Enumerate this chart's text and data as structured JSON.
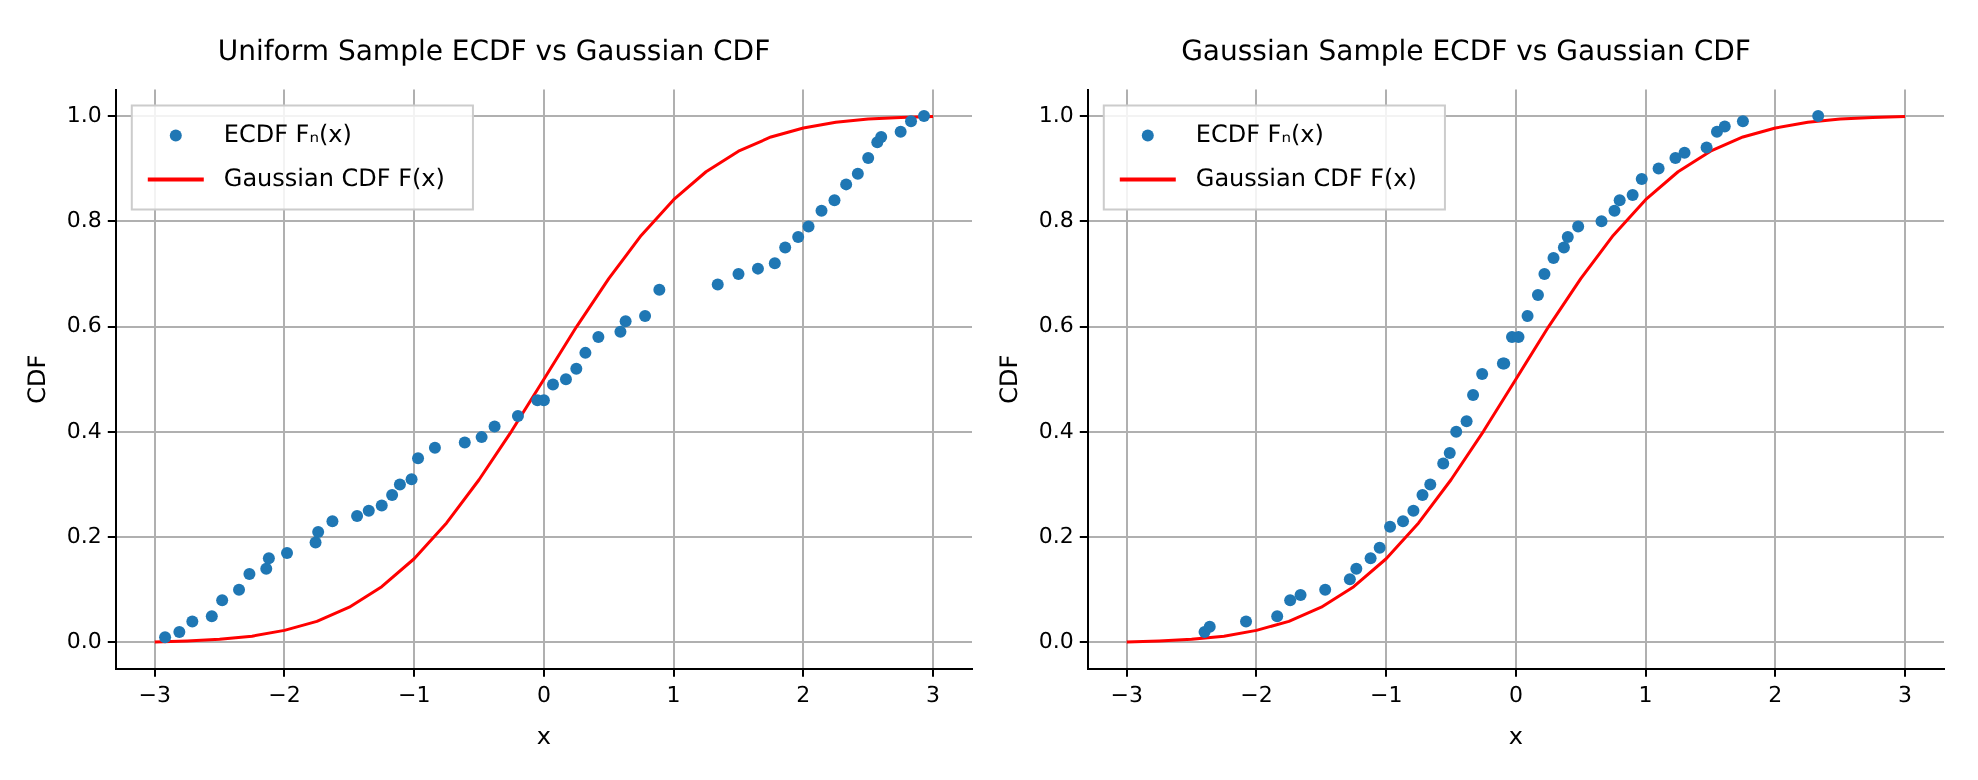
{
  "chart_data": [
    {
      "type": "scatter",
      "title": "Uniform Sample ECDF vs Gaussian CDF",
      "xlabel": "x",
      "ylabel": "CDF",
      "xlim": [
        -3.3,
        3.3
      ],
      "xticks": [
        -3,
        -2,
        -1,
        0,
        1,
        2,
        3
      ],
      "ylim": [
        -0.05,
        1.05
      ],
      "yticks": [
        {
          "value": 0,
          "label": "0.0"
        },
        {
          "value": 0.2,
          "label": "0.2"
        },
        {
          "value": 0.4,
          "label": "0.4"
        },
        {
          "value": 0.6,
          "label": "0.6"
        },
        {
          "value": 0.8,
          "label": "0.8"
        },
        {
          "value": 1,
          "label": "1.0"
        }
      ],
      "grid": true,
      "legend": "top left",
      "series": [
        {
          "name": "ECDF Fₙ(x)",
          "type": "scatter",
          "marker": "circle",
          "color": "#1f77b4",
          "x": [
            -2.92,
            -2.81,
            -2.71,
            -2.56,
            -2.48,
            -2.35,
            -2.27,
            -2.14,
            -2.12,
            -1.98,
            -1.76,
            -1.74,
            -1.63,
            -1.44,
            -1.35,
            -1.25,
            -1.17,
            -1.11,
            -1.02,
            -0.97,
            -0.84,
            -0.61,
            -0.48,
            -0.38,
            -0.2,
            -0.05,
            0,
            0.07,
            0.17,
            0.25,
            0.32,
            0.42,
            0.59,
            0.63,
            0.78,
            0.89,
            1.34,
            1.5,
            1.65,
            1.78,
            1.86,
            1.96,
            2.04,
            2.14,
            2.24,
            2.33,
            2.42,
            2.5,
            2.57,
            2.6,
            2.75,
            2.83,
            2.93
          ],
          "values": [
            0.01,
            0.02,
            0.04,
            0.05,
            0.08,
            0.1,
            0.13,
            0.14,
            0.16,
            0.17,
            0.19,
            0.21,
            0.23,
            0.24,
            0.25,
            0.26,
            0.28,
            0.3,
            0.31,
            0.35,
            0.37,
            0.38,
            0.39,
            0.41,
            0.43,
            0.46,
            0.46,
            0.49,
            0.5,
            0.52,
            0.55,
            0.58,
            0.59,
            0.61,
            0.62,
            0.67,
            0.68,
            0.7,
            0.71,
            0.72,
            0.75,
            0.77,
            0.79,
            0.82,
            0.84,
            0.87,
            0.89,
            0.92,
            0.95,
            0.96,
            0.97,
            0.99,
            1.0
          ]
        },
        {
          "name": "Gaussian CDF F(x)",
          "type": "line",
          "marker": "none",
          "line_style": "solid",
          "color": "#ff0000",
          "x": [
            -3,
            -2.75,
            -2.5,
            -2.25,
            -2,
            -1.75,
            -1.5,
            -1.25,
            -1,
            -0.75,
            -0.5,
            -0.25,
            0,
            0.25,
            0.5,
            0.75,
            1,
            1.25,
            1.5,
            1.75,
            2,
            2.25,
            2.5,
            2.75,
            3
          ],
          "values": [
            0.001,
            0.003,
            0.006,
            0.012,
            0.023,
            0.04,
            0.067,
            0.106,
            0.159,
            0.227,
            0.309,
            0.401,
            0.5,
            0.599,
            0.691,
            0.773,
            0.841,
            0.894,
            0.933,
            0.96,
            0.977,
            0.988,
            0.994,
            0.997,
            0.999
          ]
        }
      ]
    },
    {
      "type": "scatter",
      "title": "Gaussian Sample ECDF vs Gaussian CDF",
      "xlabel": "x",
      "ylabel": "CDF",
      "xlim": [
        -3.3,
        3.3
      ],
      "xticks": [
        -3,
        -2,
        -1,
        0,
        1,
        2,
        3
      ],
      "ylim": [
        -0.05,
        1.05
      ],
      "yticks": [
        {
          "value": 0,
          "label": "0.0"
        },
        {
          "value": 0.2,
          "label": "0.2"
        },
        {
          "value": 0.4,
          "label": "0.4"
        },
        {
          "value": 0.6,
          "label": "0.6"
        },
        {
          "value": 0.8,
          "label": "0.8"
        },
        {
          "value": 1,
          "label": "1.0"
        }
      ],
      "grid": true,
      "legend": "top left",
      "series": [
        {
          "name": "ECDF Fₙ(x)",
          "type": "scatter",
          "marker": "circle",
          "color": "#1f77b4",
          "x": [
            -2.4,
            -2.36,
            -2.08,
            -1.84,
            -1.74,
            -1.66,
            -1.47,
            -1.28,
            -1.23,
            -1.12,
            -1.05,
            -0.97,
            -0.87,
            -0.79,
            -0.72,
            -0.66,
            -0.56,
            -0.51,
            -0.46,
            -0.38,
            -0.33,
            -0.26,
            -0.1,
            -0.09,
            -0.03,
            0.02,
            0.09,
            0.17,
            0.22,
            0.29,
            0.37,
            0.4,
            0.48,
            0.66,
            0.76,
            0.8,
            0.9,
            0.97,
            1.1,
            1.23,
            1.3,
            1.47,
            1.55,
            1.61,
            1.75,
            2.33
          ],
          "values": [
            0.02,
            0.03,
            0.04,
            0.05,
            0.08,
            0.09,
            0.1,
            0.12,
            0.14,
            0.16,
            0.18,
            0.22,
            0.23,
            0.25,
            0.28,
            0.3,
            0.34,
            0.36,
            0.4,
            0.42,
            0.47,
            0.51,
            0.53,
            0.53,
            0.58,
            0.58,
            0.62,
            0.66,
            0.7,
            0.73,
            0.75,
            0.77,
            0.79,
            0.8,
            0.82,
            0.84,
            0.85,
            0.88,
            0.9,
            0.92,
            0.93,
            0.94,
            0.97,
            0.98,
            0.99,
            1.0
          ]
        },
        {
          "name": "Gaussian CDF F(x)",
          "type": "line",
          "marker": "none",
          "line_style": "solid",
          "color": "#ff0000",
          "x": [
            -3,
            -2.75,
            -2.5,
            -2.25,
            -2,
            -1.75,
            -1.5,
            -1.25,
            -1,
            -0.75,
            -0.5,
            -0.25,
            0,
            0.25,
            0.5,
            0.75,
            1,
            1.25,
            1.5,
            1.75,
            2,
            2.25,
            2.5,
            2.75,
            3
          ],
          "values": [
            0.001,
            0.003,
            0.006,
            0.012,
            0.023,
            0.04,
            0.067,
            0.106,
            0.159,
            0.227,
            0.309,
            0.401,
            0.5,
            0.599,
            0.691,
            0.773,
            0.841,
            0.894,
            0.933,
            0.96,
            0.977,
            0.988,
            0.994,
            0.997,
            0.999
          ]
        }
      ]
    }
  ]
}
